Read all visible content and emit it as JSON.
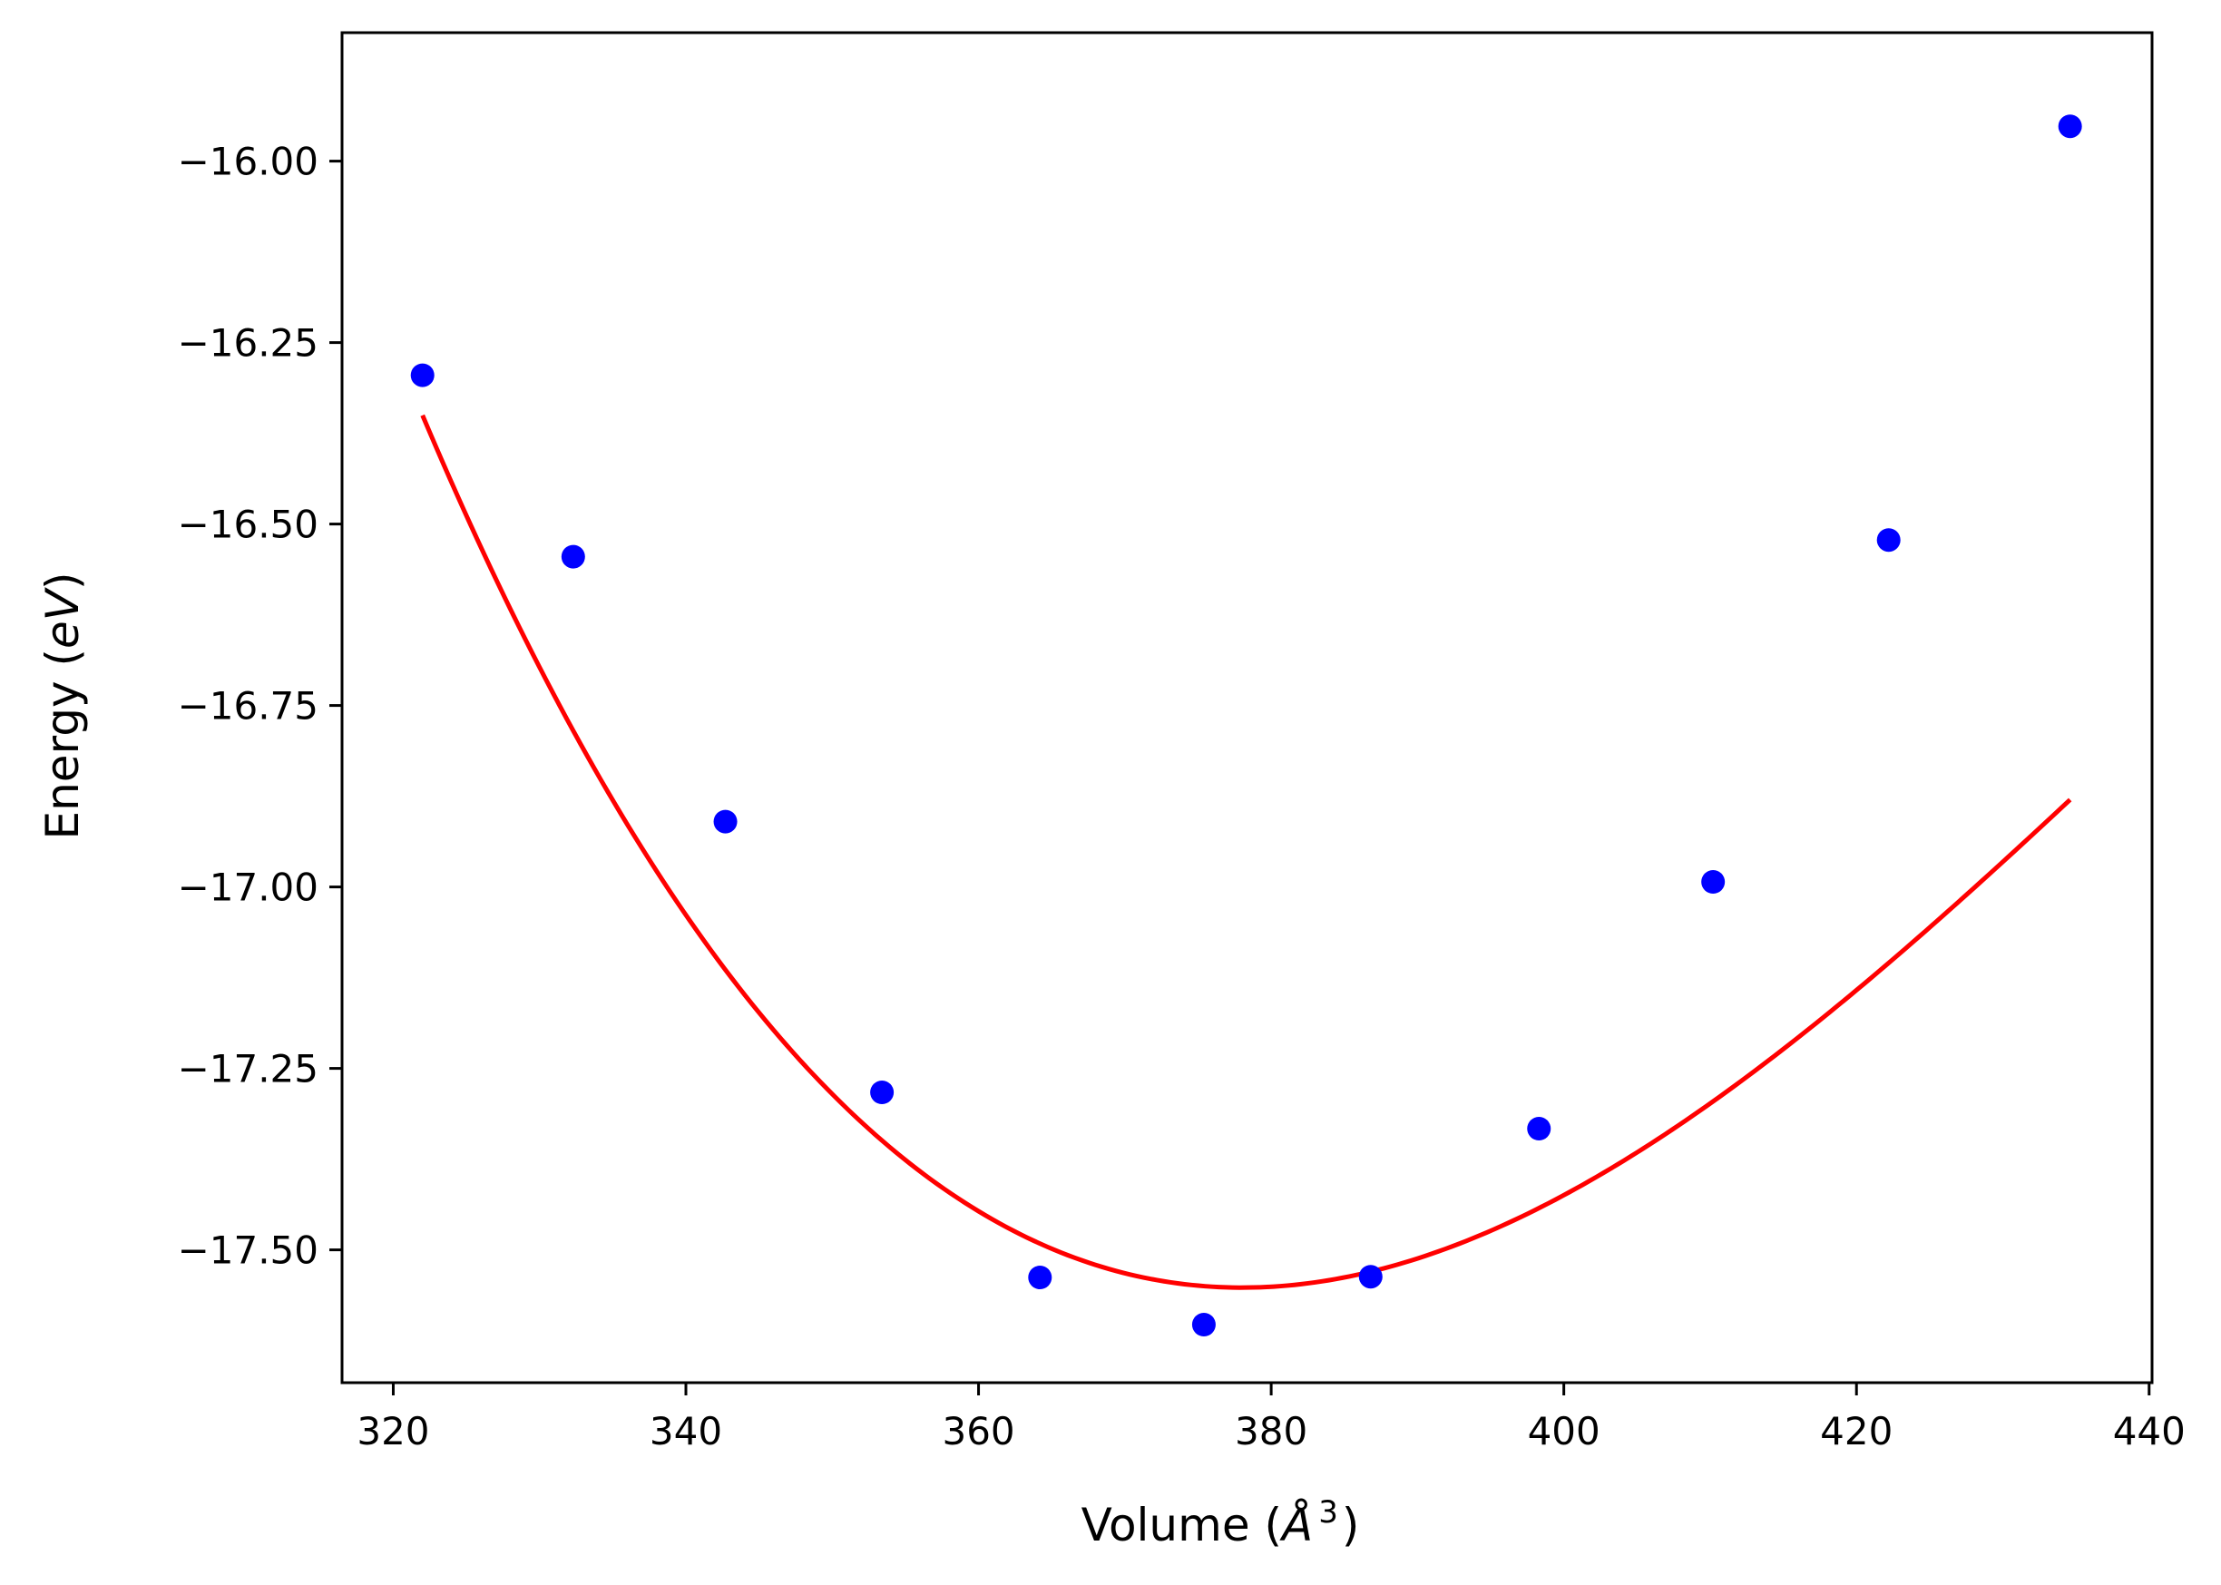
{
  "chart_data": {
    "type": "scatter",
    "xlabel_main": "Volume (",
    "xlabel_unit": "Å",
    "xlabel_sup": "3",
    "xlabel_end": ")",
    "ylabel_main": "Energy (",
    "ylabel_unit": "eV",
    "ylabel_end": ")",
    "xlim": [
      316.5,
      440.2
    ],
    "ylim": [
      -17.683,
      -15.823
    ],
    "xticks": [
      320,
      340,
      360,
      380,
      400,
      420,
      440
    ],
    "xtick_labels": [
      "320",
      "340",
      "360",
      "380",
      "400",
      "420",
      "440"
    ],
    "yticks": [
      -16.0,
      -16.25,
      -16.5,
      -16.75,
      -17.0,
      -17.25,
      -17.5
    ],
    "ytick_labels": [
      "−16.00",
      "−16.25",
      "−16.50",
      "−16.75",
      "−17.00",
      "−17.25",
      "−17.50"
    ],
    "grid": false,
    "series": [
      {
        "kind": "scatter",
        "color": "#0000ff",
        "x": [
          322.0,
          332.3,
          342.7,
          353.4,
          364.2,
          375.4,
          386.8,
          398.3,
          410.2,
          422.2,
          434.6
        ],
        "y": [
          -16.295,
          -16.545,
          -16.91,
          -17.283,
          -17.538,
          -17.603,
          -17.537,
          -17.333,
          -16.993,
          -16.522,
          -15.952
        ]
      },
      {
        "kind": "line",
        "color": "#ff0000",
        "fit": {
          "x0": 378.0,
          "y0": -17.552,
          "a": 0.000297,
          "b": -1.54e-06
        },
        "x_range": [
          322.0,
          434.6
        ]
      }
    ]
  }
}
